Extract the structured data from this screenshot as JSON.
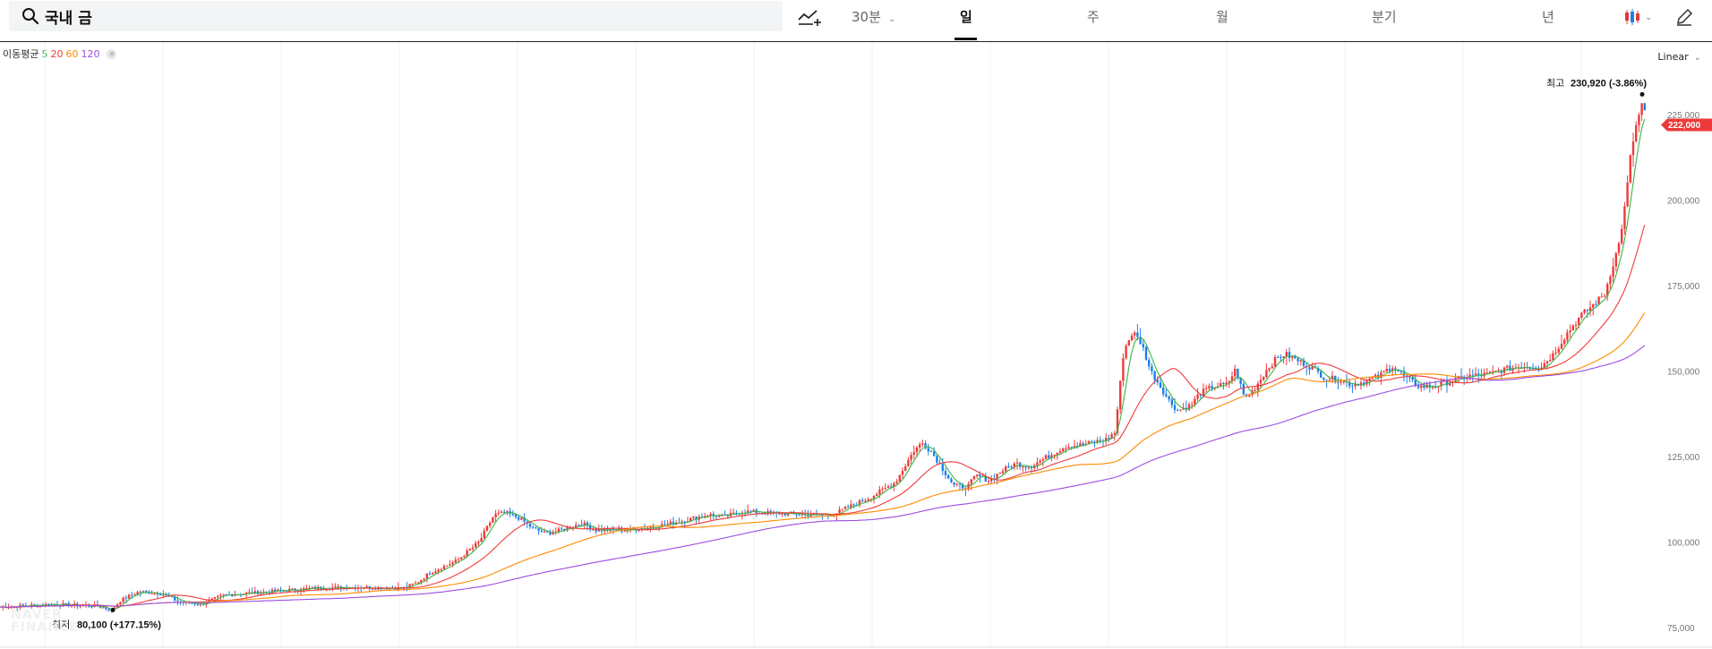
{
  "search": {
    "query": "국내 금"
  },
  "toolbar": {
    "interval": "30분",
    "periods": [
      "일",
      "주",
      "월",
      "분기",
      "년"
    ],
    "active_period": "일"
  },
  "legend": {
    "label": "이동평균",
    "periods": [
      "5",
      "20",
      "60",
      "120"
    ]
  },
  "scale": "Linear",
  "watermark": [
    "NAVER",
    "FINANCE"
  ],
  "colors": {
    "up": "#f03a3a",
    "down": "#1e7fe6",
    "ma5": "#3fb247",
    "ma20": "#f03a3a",
    "ma60": "#ff8a00",
    "ma120": "#9b4ce0",
    "price_tag": "#ec3a3a"
  },
  "chart_data": {
    "type": "candlestick",
    "ylim": [
      74000,
      236000
    ],
    "yticks": [
      75000,
      100000,
      125000,
      150000,
      175000,
      200000,
      225000
    ],
    "ytick_labels": [
      "75,000",
      "100,000",
      "125,000",
      "150,000",
      "175,000",
      "200,000",
      "225,000"
    ],
    "current_price": {
      "label": "222,000",
      "value": 222000
    },
    "high": {
      "prefix": "최고",
      "text": "230,920 (-3.86%)",
      "value": 230920
    },
    "low": {
      "prefix": "최저",
      "text": "80,100 (+177.15%)",
      "value": 80100
    },
    "price_path": [
      [
        0,
        81000
      ],
      [
        60,
        81800
      ],
      [
        110,
        81200
      ],
      [
        125,
        80100
      ],
      [
        135,
        83000
      ],
      [
        155,
        85500
      ],
      [
        180,
        85000
      ],
      [
        200,
        82500
      ],
      [
        225,
        81800
      ],
      [
        250,
        84500
      ],
      [
        300,
        85500
      ],
      [
        350,
        86500
      ],
      [
        400,
        86800
      ],
      [
        450,
        86500
      ],
      [
        465,
        88000
      ],
      [
        480,
        91000
      ],
      [
        510,
        94500
      ],
      [
        535,
        100000
      ],
      [
        552,
        108000
      ],
      [
        565,
        108500
      ],
      [
        580,
        107000
      ],
      [
        595,
        104000
      ],
      [
        610,
        102500
      ],
      [
        620,
        103000
      ],
      [
        650,
        105500
      ],
      [
        665,
        103500
      ],
      [
        700,
        103500
      ],
      [
        730,
        104500
      ],
      [
        760,
        106000
      ],
      [
        790,
        108000
      ],
      [
        810,
        107500
      ],
      [
        830,
        109000
      ],
      [
        860,
        108500
      ],
      [
        900,
        108000
      ],
      [
        930,
        108000
      ],
      [
        950,
        110500
      ],
      [
        975,
        113500
      ],
      [
        1000,
        117500
      ],
      [
        1020,
        126500
      ],
      [
        1030,
        129000
      ],
      [
        1040,
        126500
      ],
      [
        1050,
        122500
      ],
      [
        1065,
        116500
      ],
      [
        1080,
        116000
      ],
      [
        1090,
        119500
      ],
      [
        1105,
        118000
      ],
      [
        1120,
        121000
      ],
      [
        1135,
        123000
      ],
      [
        1150,
        122000
      ],
      [
        1170,
        125000
      ],
      [
        1190,
        128000
      ],
      [
        1210,
        128500
      ],
      [
        1235,
        130000
      ],
      [
        1245,
        132000
      ],
      [
        1250,
        143500
      ],
      [
        1255,
        156000
      ],
      [
        1265,
        161500
      ],
      [
        1275,
        158000
      ],
      [
        1285,
        150000
      ],
      [
        1295,
        146000
      ],
      [
        1305,
        141500
      ],
      [
        1315,
        138500
      ],
      [
        1330,
        140000
      ],
      [
        1340,
        143500
      ],
      [
        1355,
        145500
      ],
      [
        1370,
        146000
      ],
      [
        1380,
        150500
      ],
      [
        1390,
        142000
      ],
      [
        1400,
        144500
      ],
      [
        1415,
        150500
      ],
      [
        1425,
        153500
      ],
      [
        1435,
        155000
      ],
      [
        1450,
        153000
      ],
      [
        1465,
        151000
      ],
      [
        1480,
        148000
      ],
      [
        1495,
        147500
      ],
      [
        1510,
        146000
      ],
      [
        1525,
        147000
      ],
      [
        1540,
        148500
      ],
      [
        1555,
        151500
      ],
      [
        1570,
        148000
      ],
      [
        1585,
        145500
      ],
      [
        1600,
        145500
      ],
      [
        1620,
        147000
      ],
      [
        1640,
        148500
      ],
      [
        1660,
        149000
      ],
      [
        1680,
        150500
      ],
      [
        1700,
        151500
      ],
      [
        1720,
        151000
      ],
      [
        1735,
        155000
      ],
      [
        1750,
        161000
      ],
      [
        1765,
        166000
      ],
      [
        1780,
        169500
      ],
      [
        1792,
        172500
      ],
      [
        1800,
        180000
      ],
      [
        1808,
        187000
      ],
      [
        1815,
        198500
      ],
      [
        1822,
        215000
      ],
      [
        1828,
        222500
      ],
      [
        1834,
        228000
      ],
      [
        1840,
        222000
      ]
    ]
  }
}
